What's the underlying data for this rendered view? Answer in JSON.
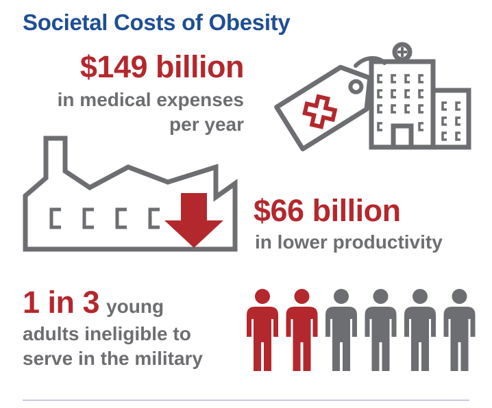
{
  "title": "Societal Costs of Obesity",
  "stat_medical": {
    "amount": "$149 billion",
    "line1": "in medical expenses",
    "line2": "per year"
  },
  "stat_productivity": {
    "amount": "$66 billion",
    "line1": "in lower productivity"
  },
  "stat_military": {
    "amount": "1 in 3",
    "line1_suffix": "young",
    "line2": "adults ineligible to",
    "line3": "serve in the military"
  },
  "people_chart": {
    "highlighted": 2,
    "total": 6
  },
  "colors": {
    "title": "#1f4e93",
    "accent": "#b3282d",
    "text_grey": "#6d6e71",
    "rule": "#9b97c4"
  },
  "icons": [
    "hospital-icon",
    "price-tag-icon",
    "factory-icon",
    "down-arrow-icon",
    "person-icon"
  ]
}
